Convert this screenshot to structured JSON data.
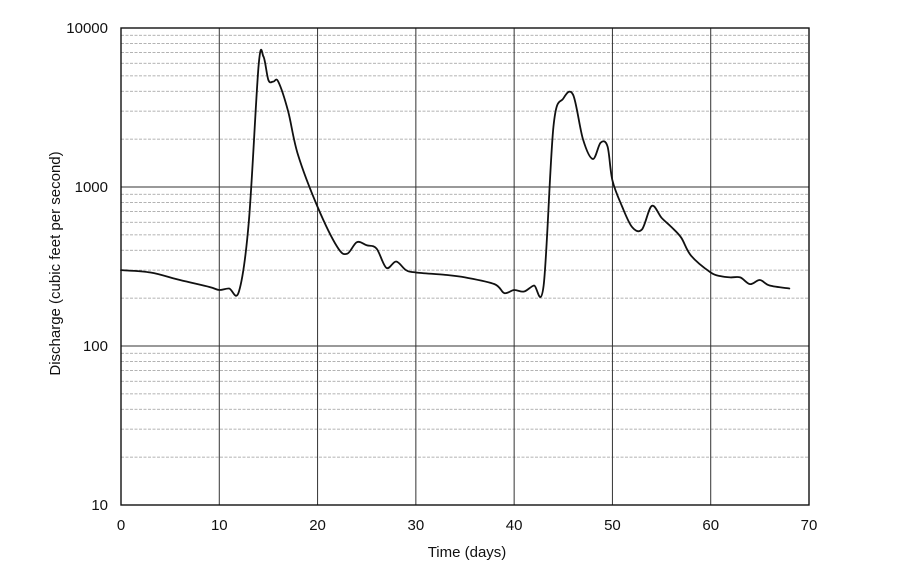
{
  "chart_data": {
    "type": "line",
    "title": "",
    "xlabel": "Time (days)",
    "ylabel": "Discharge (cubic feet per second)",
    "xlim": [
      0,
      70
    ],
    "ylim": [
      10,
      10000
    ],
    "yscale": "log",
    "grid": true,
    "legend": "none",
    "line_color": "#111111",
    "x_ticks": [
      "0",
      "10",
      "20",
      "30",
      "40",
      "50",
      "60",
      "70"
    ],
    "y_ticks": [
      "10",
      "100",
      "1000",
      "10000"
    ],
    "series": [
      {
        "x": [
          0,
          3,
          6,
          9,
          10,
          11,
          12,
          13,
          14,
          14.5,
          15,
          15.5,
          16,
          17,
          18,
          20,
          22,
          23,
          24,
          25,
          26,
          27,
          28,
          29,
          30,
          33,
          35,
          38,
          39,
          40,
          41,
          42,
          43,
          44,
          45,
          46,
          47,
          48,
          48.8,
          49.5,
          50,
          51,
          52,
          53,
          54,
          55,
          56,
          57,
          58,
          60,
          61,
          62,
          63,
          64,
          65,
          66,
          68
        ],
        "y": [
          300,
          290,
          260,
          235,
          225,
          230,
          220,
          600,
          5800,
          6600,
          4700,
          4600,
          4600,
          3000,
          1600,
          750,
          420,
          380,
          450,
          430,
          410,
          310,
          340,
          300,
          290,
          280,
          270,
          245,
          215,
          225,
          220,
          240,
          240,
          2400,
          3600,
          3800,
          2000,
          1500,
          1900,
          1800,
          1100,
          750,
          560,
          540,
          760,
          640,
          560,
          480,
          370,
          290,
          275,
          270,
          270,
          245,
          260,
          240,
          230
        ]
      }
    ]
  }
}
